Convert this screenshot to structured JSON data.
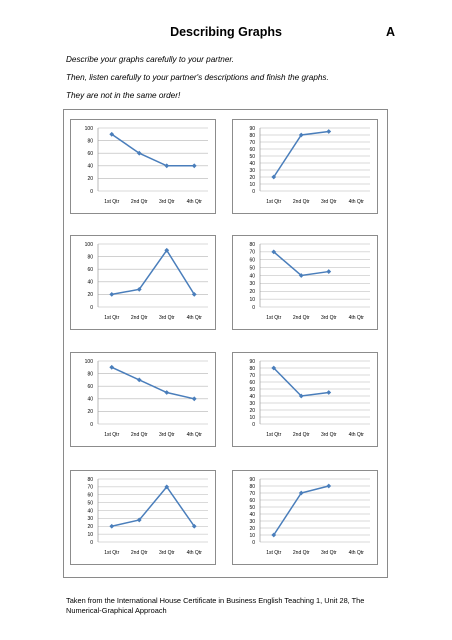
{
  "header": {
    "title": "Describing Graphs",
    "version": "A"
  },
  "instructions": [
    "Describe your graphs carefully to your partner.",
    "Then, listen carefully to your partner's descriptions and finish the graphs.",
    "They are not in the same order!"
  ],
  "footer": {
    "line1": "Taken from the International House Certificate in Business English Teaching 1, Unit 28, The",
    "line2": "Numerical-Graphical Approach"
  },
  "colors": {
    "line": "#4a7ebb",
    "grid": "#b5b5b5",
    "frame": "#8c8c8c"
  },
  "chart_data": [
    {
      "type": "line",
      "categories": [
        "1st Qtr",
        "2nd Qtr",
        "3rd Qtr",
        "4th Qtr"
      ],
      "ylim": [
        0,
        100
      ],
      "yticks": [
        0,
        20,
        40,
        60,
        80,
        100
      ],
      "values": [
        90,
        60,
        40,
        40
      ]
    },
    {
      "type": "line",
      "categories": [
        "1st Qtr",
        "2nd Qtr",
        "3rd Qtr",
        "4th Qtr"
      ],
      "ylim": [
        0,
        90
      ],
      "yticks": [
        0,
        10,
        20,
        30,
        40,
        50,
        60,
        70,
        80,
        90
      ],
      "values": [
        20,
        80,
        85,
        null
      ]
    },
    {
      "type": "line",
      "categories": [
        "1st Qtr",
        "2nd Qtr",
        "3rd Qtr",
        "4th Qtr"
      ],
      "ylim": [
        0,
        100
      ],
      "yticks": [
        0,
        20,
        40,
        60,
        80,
        100
      ],
      "values": [
        20,
        28,
        90,
        20
      ]
    },
    {
      "type": "line",
      "categories": [
        "1st Qtr",
        "2nd Qtr",
        "3rd Qtr",
        "4th Qtr"
      ],
      "ylim": [
        0,
        80
      ],
      "yticks": [
        0,
        10,
        20,
        30,
        40,
        50,
        60,
        70,
        80
      ],
      "values": [
        70,
        40,
        45,
        null
      ]
    },
    {
      "type": "line",
      "categories": [
        "1st Qtr",
        "2nd Qtr",
        "3rd Qtr",
        "4th Qtr"
      ],
      "ylim": [
        0,
        100
      ],
      "yticks": [
        0,
        20,
        40,
        60,
        80,
        100
      ],
      "values": [
        90,
        70,
        50,
        40
      ]
    },
    {
      "type": "line",
      "categories": [
        "1st Qtr",
        "2nd Qtr",
        "3rd Qtr",
        "4th Qtr"
      ],
      "ylim": [
        0,
        90
      ],
      "yticks": [
        0,
        10,
        20,
        30,
        40,
        50,
        60,
        70,
        80,
        90
      ],
      "values": [
        80,
        40,
        45,
        null
      ]
    },
    {
      "type": "line",
      "categories": [
        "1st Qtr",
        "2nd Qtr",
        "3rd Qtr",
        "4th Qtr"
      ],
      "ylim": [
        0,
        80
      ],
      "yticks": [
        0,
        10,
        20,
        30,
        40,
        50,
        60,
        70,
        80
      ],
      "values": [
        20,
        28,
        70,
        20
      ]
    },
    {
      "type": "line",
      "categories": [
        "1st Qtr",
        "2nd Qtr",
        "3rd Qtr",
        "4th Qtr"
      ],
      "ylim": [
        0,
        90
      ],
      "yticks": [
        0,
        10,
        20,
        30,
        40,
        50,
        60,
        70,
        80,
        90
      ],
      "values": [
        10,
        70,
        80,
        null
      ]
    }
  ]
}
